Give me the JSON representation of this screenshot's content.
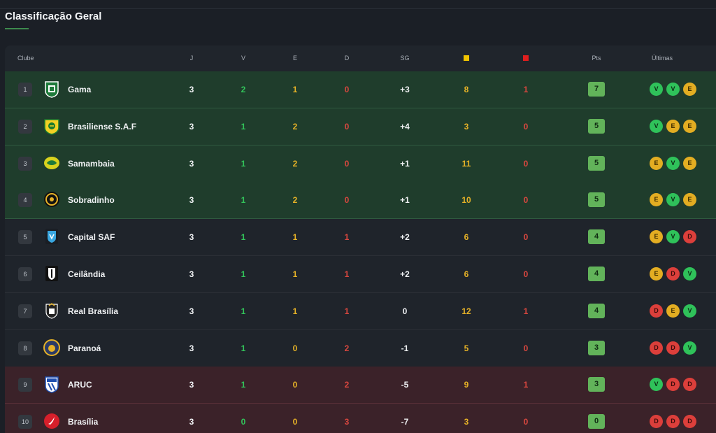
{
  "title": "Classificação Geral",
  "columns": {
    "club": "Clube",
    "j": "J",
    "v": "V",
    "e": "E",
    "d": "D",
    "sg": "SG",
    "yellow_icon": "yellow-card-icon",
    "red_icon": "red-card-icon",
    "pts": "Pts",
    "last": "Últimas"
  },
  "colors": {
    "promotion_zone": "#1f3d2c",
    "relegation_zone": "#3b2229",
    "yellow_card": "#f0c400",
    "red_card": "#e01e1e",
    "win": "#2fc25a",
    "draw": "#e3ad22",
    "loss": "#dc3f3b"
  },
  "rows": [
    {
      "pos": "1",
      "club": "Gama",
      "j": "3",
      "v": "2",
      "e": "1",
      "d": "0",
      "sg": "+3",
      "yc": "8",
      "rc": "1",
      "pts": "7",
      "last": [
        "V",
        "V",
        "E"
      ],
      "zone": "g",
      "crest": "gama-crest-icon"
    },
    {
      "pos": "2",
      "club": "Brasiliense S.A.F",
      "j": "3",
      "v": "1",
      "e": "2",
      "d": "0",
      "sg": "+4",
      "yc": "3",
      "rc": "0",
      "pts": "5",
      "last": [
        "V",
        "E",
        "E"
      ],
      "zone": "g",
      "crest": "brasiliense-crest-icon"
    },
    {
      "pos": "3",
      "club": "Samambaia",
      "j": "3",
      "v": "1",
      "e": "2",
      "d": "0",
      "sg": "+1",
      "yc": "11",
      "rc": "0",
      "pts": "5",
      "last": [
        "E",
        "V",
        "E"
      ],
      "zone": "g",
      "crest": "samambaia-crest-icon"
    },
    {
      "pos": "4",
      "club": "Sobradinho",
      "j": "3",
      "v": "1",
      "e": "2",
      "d": "0",
      "sg": "+1",
      "yc": "10",
      "rc": "0",
      "pts": "5",
      "last": [
        "E",
        "V",
        "E"
      ],
      "zone": "g",
      "crest": "sobradinho-crest-icon"
    },
    {
      "pos": "5",
      "club": "Capital SAF",
      "j": "3",
      "v": "1",
      "e": "1",
      "d": "1",
      "sg": "+2",
      "yc": "6",
      "rc": "0",
      "pts": "4",
      "last": [
        "E",
        "V",
        "D"
      ],
      "zone": "n",
      "crest": "capital-crest-icon"
    },
    {
      "pos": "6",
      "club": "Ceilândia",
      "j": "3",
      "v": "1",
      "e": "1",
      "d": "1",
      "sg": "+2",
      "yc": "6",
      "rc": "0",
      "pts": "4",
      "last": [
        "E",
        "D",
        "V"
      ],
      "zone": "n",
      "crest": "ceilandia-crest-icon"
    },
    {
      "pos": "7",
      "club": "Real Brasília",
      "j": "3",
      "v": "1",
      "e": "1",
      "d": "1",
      "sg": "0",
      "yc": "12",
      "rc": "1",
      "pts": "4",
      "last": [
        "D",
        "E",
        "V"
      ],
      "zone": "n",
      "crest": "real-brasilia-crest-icon"
    },
    {
      "pos": "8",
      "club": "Paranoá",
      "j": "3",
      "v": "1",
      "e": "0",
      "d": "2",
      "sg": "-1",
      "yc": "5",
      "rc": "0",
      "pts": "3",
      "last": [
        "D",
        "D",
        "V"
      ],
      "zone": "n",
      "crest": "paranoa-crest-icon"
    },
    {
      "pos": "9",
      "club": "ARUC",
      "j": "3",
      "v": "1",
      "e": "0",
      "d": "2",
      "sg": "-5",
      "yc": "9",
      "rc": "1",
      "pts": "3",
      "last": [
        "V",
        "D",
        "D"
      ],
      "zone": "r",
      "crest": "aruc-crest-icon"
    },
    {
      "pos": "10",
      "club": "Brasília",
      "j": "3",
      "v": "0",
      "e": "0",
      "d": "3",
      "sg": "-7",
      "yc": "3",
      "rc": "0",
      "pts": "0",
      "last": [
        "D",
        "D",
        "D"
      ],
      "zone": "r",
      "crest": "brasilia-crest-icon"
    }
  ]
}
